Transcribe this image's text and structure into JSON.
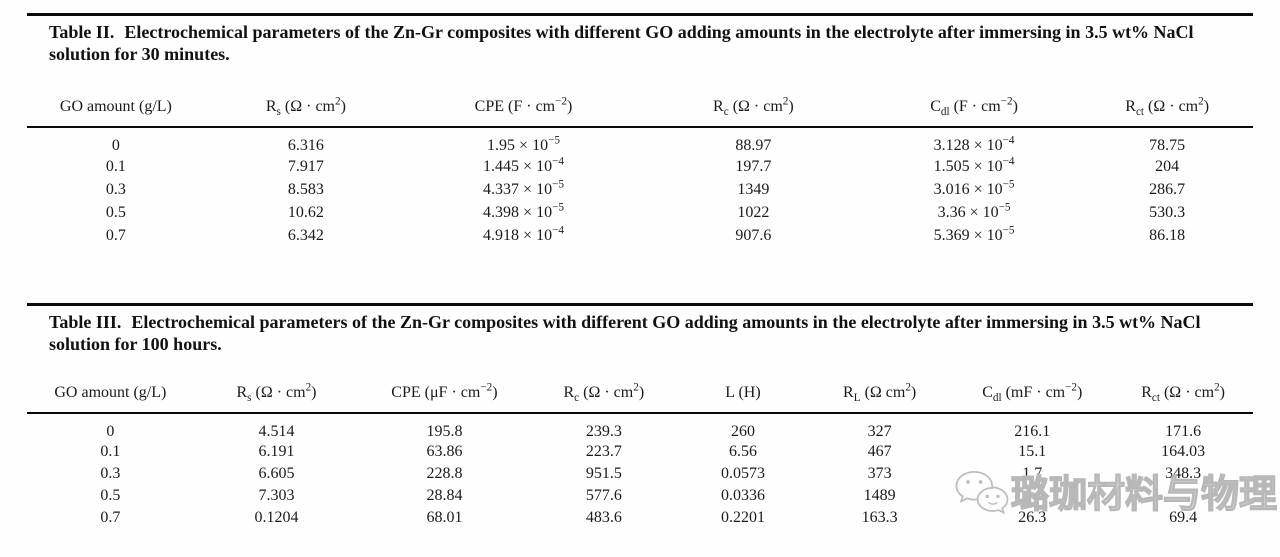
{
  "page": {
    "background": "#fefefe",
    "text_color": "#1b1b1b",
    "rule_color": "#0a0a0a",
    "watermark_color": "#b8b8b8"
  },
  "table2": {
    "caption_label": "Table II.",
    "caption_text": "Electrochemical parameters of the Zn-Gr composites with different GO adding amounts in the electrolyte after immersing in 3.5 wt% NaCl solution for 30 minutes.",
    "headers": [
      [
        {
          "t": "GO amount (g/L)"
        }
      ],
      [
        {
          "t": "R"
        },
        {
          "t": "s",
          "s": "sub"
        },
        {
          "t": " (Ω · cm"
        },
        {
          "t": "2",
          "s": "sup"
        },
        {
          "t": ")"
        }
      ],
      [
        {
          "t": "CPE (F · cm"
        },
        {
          "t": "−2",
          "s": "sup"
        },
        {
          "t": ")"
        }
      ],
      [
        {
          "t": "R"
        },
        {
          "t": "c",
          "s": "sub"
        },
        {
          "t": " (Ω · cm"
        },
        {
          "t": "2",
          "s": "sup"
        },
        {
          "t": ")"
        }
      ],
      [
        {
          "t": "C"
        },
        {
          "t": "dl",
          "s": "sub"
        },
        {
          "t": " (F · cm"
        },
        {
          "t": "−2",
          "s": "sup"
        },
        {
          "t": ")"
        }
      ],
      [
        {
          "t": "R"
        },
        {
          "t": "ct",
          "s": "sub"
        },
        {
          "t": " (Ω · cm"
        },
        {
          "t": "2",
          "s": "sup"
        },
        {
          "t": ")"
        }
      ]
    ],
    "rows": [
      [
        "0",
        "6.316",
        [
          {
            "t": "1.95 × 10"
          },
          {
            "t": "−5",
            "s": "sup"
          }
        ],
        "88.97",
        [
          {
            "t": "3.128 × 10"
          },
          {
            "t": "−4",
            "s": "sup"
          }
        ],
        "78.75"
      ],
      [
        "0.1",
        "7.917",
        [
          {
            "t": "1.445 × 10"
          },
          {
            "t": "−4",
            "s": "sup"
          }
        ],
        "197.7",
        [
          {
            "t": "1.505 × 10"
          },
          {
            "t": "−4",
            "s": "sup"
          }
        ],
        "204"
      ],
      [
        "0.3",
        "8.583",
        [
          {
            "t": "4.337 × 10"
          },
          {
            "t": "−5",
            "s": "sup"
          }
        ],
        "1349",
        [
          {
            "t": "3.016 × 10"
          },
          {
            "t": "−5",
            "s": "sup"
          }
        ],
        "286.7"
      ],
      [
        "0.5",
        "10.62",
        [
          {
            "t": "4.398 × 10"
          },
          {
            "t": "−5",
            "s": "sup"
          }
        ],
        "1022",
        [
          {
            "t": "3.36 × 10"
          },
          {
            "t": "−5",
            "s": "sup"
          }
        ],
        "530.3"
      ],
      [
        "0.7",
        "6.342",
        [
          {
            "t": "4.918 × 10"
          },
          {
            "t": "−4",
            "s": "sup"
          }
        ],
        "907.6",
        [
          {
            "t": "5.369 × 10"
          },
          {
            "t": "−5",
            "s": "sup"
          }
        ],
        "86.18"
      ]
    ]
  },
  "table3": {
    "caption_label": "Table III.",
    "caption_text": "Electrochemical parameters of the Zn-Gr composites with different GO adding amounts in the electrolyte after immersing in 3.5 wt% NaCl solution for 100 hours.",
    "headers": [
      [
        {
          "t": "GO amount (g/L)"
        }
      ],
      [
        {
          "t": "R"
        },
        {
          "t": "s",
          "s": "sub"
        },
        {
          "t": " (Ω · cm"
        },
        {
          "t": "2",
          "s": "sup"
        },
        {
          "t": ")"
        }
      ],
      [
        {
          "t": "CPE (μF · cm"
        },
        {
          "t": "−2",
          "s": "sup"
        },
        {
          "t": ")"
        }
      ],
      [
        {
          "t": "R"
        },
        {
          "t": "c",
          "s": "sub"
        },
        {
          "t": " (Ω · cm"
        },
        {
          "t": "2",
          "s": "sup"
        },
        {
          "t": ")"
        }
      ],
      [
        {
          "t": "L (H)"
        }
      ],
      [
        {
          "t": "R"
        },
        {
          "t": "L",
          "s": "sub"
        },
        {
          "t": " (Ω cm"
        },
        {
          "t": "2",
          "s": "sup"
        },
        {
          "t": ")"
        }
      ],
      [
        {
          "t": "C"
        },
        {
          "t": "dl",
          "s": "sub"
        },
        {
          "t": " (mF · cm"
        },
        {
          "t": "−2",
          "s": "sup"
        },
        {
          "t": ")"
        }
      ],
      [
        {
          "t": "R"
        },
        {
          "t": "ct",
          "s": "sub"
        },
        {
          "t": " (Ω · cm"
        },
        {
          "t": "2",
          "s": "sup"
        },
        {
          "t": ")"
        }
      ]
    ],
    "rows": [
      [
        "0",
        "4.514",
        "195.8",
        "239.3",
        "260",
        "327",
        "216.1",
        "171.6"
      ],
      [
        "0.1",
        "6.191",
        "63.86",
        "223.7",
        "6.56",
        "467",
        "15.1",
        "164.03"
      ],
      [
        "0.3",
        "6.605",
        "228.8",
        "951.5",
        "0.0573",
        "373",
        "1.7",
        "348.3"
      ],
      [
        "0.5",
        "7.303",
        "28.84",
        "577.6",
        "0.0336",
        "1489",
        "",
        ""
      ],
      [
        "0.7",
        "0.1204",
        "68.01",
        "483.6",
        "0.2201",
        "163.3",
        "26.3",
        "69.4"
      ]
    ]
  },
  "watermark": {
    "icon": "wechat-chat-bubbles-icon",
    "text": "璐珈材料与物理"
  }
}
